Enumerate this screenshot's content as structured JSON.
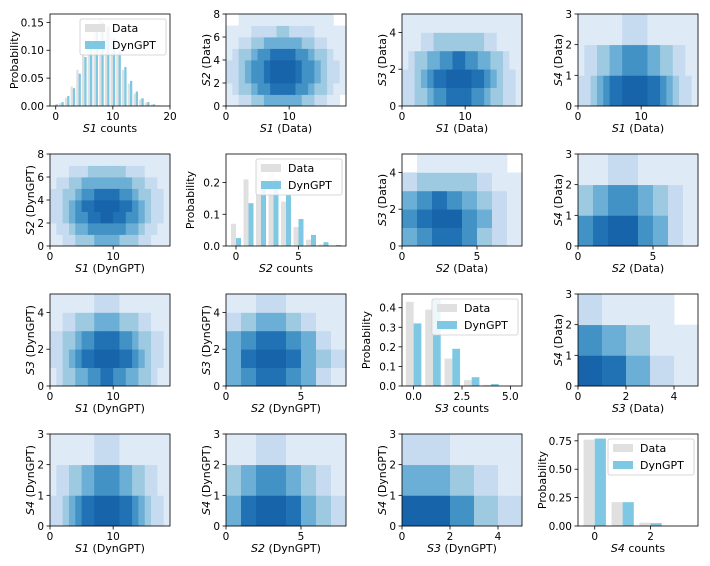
{
  "colors": {
    "data_bar": "#e0e0e0",
    "dyngpt_bar": "#7ec8e3",
    "heat_scale": [
      "#ffffff",
      "#deebf7",
      "#c6dbef",
      "#9ecae1",
      "#6baed6",
      "#4292c6",
      "#2171b5",
      "#1764ab"
    ]
  },
  "chart_data": [
    {
      "type": "bar",
      "row": 0,
      "col": 0,
      "xlabel": "S1 counts",
      "ylabel": "Probability",
      "xlim": [
        -1,
        20
      ],
      "ylim": [
        0,
        0.165
      ],
      "xticks": [
        0,
        10,
        20
      ],
      "yticks": [
        0.0,
        0.05,
        0.1,
        0.15
      ],
      "ytick_labels": [
        "0.00",
        "0.05",
        "0.10",
        "0.15"
      ],
      "legend": {
        "location": "upper right",
        "entries": [
          "Data",
          "DynGPT"
        ]
      },
      "categories": [
        0,
        1,
        2,
        3,
        4,
        5,
        6,
        7,
        8,
        9,
        10,
        11,
        12,
        13,
        14,
        15,
        16,
        17,
        18,
        19
      ],
      "series": [
        {
          "name": "Data",
          "values": [
            0.002,
            0.005,
            0.015,
            0.035,
            0.065,
            0.095,
            0.12,
            0.14,
            0.155,
            0.145,
            0.125,
            0.095,
            0.065,
            0.04,
            0.022,
            0.012,
            0.006,
            0.003,
            0.001,
            0.0
          ]
        },
        {
          "name": "DynGPT",
          "values": [
            0.003,
            0.007,
            0.018,
            0.032,
            0.058,
            0.088,
            0.113,
            0.135,
            0.15,
            0.142,
            0.122,
            0.098,
            0.07,
            0.045,
            0.026,
            0.014,
            0.007,
            0.003,
            0.001,
            0.0
          ]
        }
      ]
    },
    {
      "type": "heatmap",
      "row": 0,
      "col": 1,
      "xlabel": "S1 (Data)",
      "ylabel": "S2 (Data)",
      "xlim": [
        0,
        19
      ],
      "ylim": [
        0,
        8
      ],
      "xticks": [
        0,
        10
      ],
      "yticks": [
        0,
        2,
        4,
        6,
        8
      ],
      "grid": {
        "nx": 19,
        "ny": 8,
        "mu": [
          9,
          3
        ],
        "sigma": [
          4,
          1.9
        ],
        "empty_corners": [
          [
            0,
            7
          ],
          [
            1,
            7
          ],
          [
            17,
            7
          ],
          [
            18,
            7
          ],
          [
            18,
            0
          ]
        ]
      }
    },
    {
      "type": "heatmap",
      "row": 0,
      "col": 2,
      "xlabel": "S1 (Data)",
      "ylabel": "S3 (Data)",
      "xlim": [
        0,
        19
      ],
      "ylim": [
        0,
        5
      ],
      "xticks": [
        0,
        10
      ],
      "yticks": [
        0,
        2,
        4
      ],
      "grid": {
        "nx": 19,
        "ny": 5,
        "mu": [
          9,
          1.4
        ],
        "sigma": [
          4,
          1.3
        ]
      }
    },
    {
      "type": "heatmap",
      "row": 0,
      "col": 3,
      "xlabel": "S1 (Data)",
      "ylabel": "S4 (Data)",
      "xlim": [
        0,
        19
      ],
      "ylim": [
        0,
        3
      ],
      "xticks": [
        0,
        10
      ],
      "yticks": [
        0,
        1,
        2,
        3
      ],
      "grid": {
        "nx": 19,
        "ny": 3,
        "mu": [
          9,
          0.5
        ],
        "sigma": [
          4,
          0.9
        ]
      }
    },
    {
      "type": "heatmap",
      "row": 1,
      "col": 0,
      "xlabel": "S1 (DynGPT)",
      "ylabel": "S2 (DynGPT)",
      "xlim": [
        0,
        19
      ],
      "ylim": [
        0,
        8
      ],
      "xticks": [
        0,
        10
      ],
      "yticks": [
        0,
        2,
        4,
        6,
        8
      ],
      "grid": {
        "nx": 19,
        "ny": 8,
        "mu": [
          9,
          3.2
        ],
        "sigma": [
          4,
          1.9
        ]
      }
    },
    {
      "type": "bar",
      "row": 1,
      "col": 1,
      "xlabel": "S2 counts",
      "ylabel": "Probability",
      "xlim": [
        -0.8,
        8.8
      ],
      "ylim": [
        0,
        0.29
      ],
      "xticks": [
        0,
        5
      ],
      "yticks": [
        0.0,
        0.1,
        0.2
      ],
      "ytick_labels": [
        "0.0",
        "0.1",
        "0.2"
      ],
      "legend": {
        "location": "upper right",
        "entries": [
          "Data",
          "DynGPT"
        ]
      },
      "categories": [
        0,
        1,
        2,
        3,
        4,
        5,
        6,
        7,
        8
      ],
      "series": [
        {
          "name": "Data",
          "values": [
            0.07,
            0.21,
            0.27,
            0.23,
            0.14,
            0.06,
            0.02,
            0.005,
            0.001
          ]
        },
        {
          "name": "DynGPT",
          "values": [
            0.025,
            0.135,
            0.195,
            0.21,
            0.16,
            0.085,
            0.035,
            0.012,
            0.003
          ]
        }
      ]
    },
    {
      "type": "heatmap",
      "row": 1,
      "col": 2,
      "xlabel": "S2 (Data)",
      "ylabel": "S3 (Data)",
      "xlim": [
        0,
        8
      ],
      "ylim": [
        0,
        5
      ],
      "xticks": [
        0,
        5
      ],
      "yticks": [
        0,
        2,
        4
      ],
      "grid": {
        "nx": 8,
        "ny": 5,
        "mu": [
          2.7,
          1.4
        ],
        "sigma": [
          2.0,
          1.3
        ],
        "empty_corners": [
          [
            0,
            4
          ],
          [
            7,
            4
          ]
        ]
      }
    },
    {
      "type": "heatmap",
      "row": 1,
      "col": 3,
      "xlabel": "S2 (Data)",
      "ylabel": "S4 (Data)",
      "xlim": [
        0,
        8
      ],
      "ylim": [
        0,
        3
      ],
      "xticks": [
        0,
        5
      ],
      "yticks": [
        0,
        1,
        2,
        3
      ],
      "grid": {
        "nx": 8,
        "ny": 3,
        "mu": [
          2.7,
          0.5
        ],
        "sigma": [
          2.0,
          0.9
        ]
      }
    },
    {
      "type": "heatmap",
      "row": 2,
      "col": 0,
      "xlabel": "S1 (DynGPT)",
      "ylabel": "S3 (DynGPT)",
      "xlim": [
        0,
        19
      ],
      "ylim": [
        0,
        5
      ],
      "xticks": [
        0,
        10
      ],
      "yticks": [
        0,
        2,
        4
      ],
      "grid": {
        "nx": 19,
        "ny": 5,
        "mu": [
          9,
          1.6
        ],
        "sigma": [
          4,
          1.3
        ]
      }
    },
    {
      "type": "heatmap",
      "row": 2,
      "col": 1,
      "xlabel": "S2 (DynGPT)",
      "ylabel": "S3 (DynGPT)",
      "xlim": [
        0,
        8
      ],
      "ylim": [
        0,
        5
      ],
      "xticks": [
        0,
        5
      ],
      "yticks": [
        0,
        2,
        4
      ],
      "grid": {
        "nx": 8,
        "ny": 5,
        "mu": [
          3.0,
          1.6
        ],
        "sigma": [
          2.0,
          1.3
        ]
      }
    },
    {
      "type": "bar",
      "row": 2,
      "col": 2,
      "xlabel": "S3 counts",
      "ylabel": "Probability",
      "xlim": [
        -0.6,
        5.6
      ],
      "ylim": [
        0,
        0.47
      ],
      "xticks": [
        0,
        2.5,
        5
      ],
      "xtick_labels": [
        "0.0",
        "2.5",
        "5.0"
      ],
      "yticks": [
        0.0,
        0.1,
        0.2,
        0.3,
        0.4
      ],
      "ytick_labels": [
        "0.0",
        "0.1",
        "0.2",
        "0.3",
        "0.4"
      ],
      "legend": {
        "location": "upper right",
        "entries": [
          "Data",
          "DynGPT"
        ]
      },
      "categories": [
        0,
        1,
        2,
        3,
        4,
        5
      ],
      "series": [
        {
          "name": "Data",
          "values": [
            0.43,
            0.39,
            0.14,
            0.03,
            0.006,
            0.001
          ]
        },
        {
          "name": "DynGPT",
          "values": [
            0.32,
            0.44,
            0.19,
            0.045,
            0.01,
            0.002
          ]
        }
      ]
    },
    {
      "type": "heatmap",
      "row": 2,
      "col": 3,
      "xlabel": "S3 (Data)",
      "ylabel": "S4 (Data)",
      "xlim": [
        0,
        5
      ],
      "ylim": [
        0,
        3
      ],
      "xticks": [
        0,
        2,
        4
      ],
      "yticks": [
        0,
        1,
        2,
        3
      ],
      "grid": {
        "nx": 5,
        "ny": 3,
        "mu": [
          0.6,
          0.3
        ],
        "sigma": [
          1.5,
          1.0
        ],
        "empty_corners": [
          [
            4,
            2
          ]
        ]
      }
    },
    {
      "type": "heatmap",
      "row": 3,
      "col": 0,
      "xlabel": "S1 (DynGPT)",
      "ylabel": "S4 (DynGPT)",
      "xlim": [
        0,
        19
      ],
      "ylim": [
        0,
        3
      ],
      "xticks": [
        0,
        10
      ],
      "yticks": [
        0,
        1,
        2,
        3
      ],
      "grid": {
        "nx": 19,
        "ny": 3,
        "mu": [
          9,
          0.5
        ],
        "sigma": [
          4,
          0.9
        ]
      }
    },
    {
      "type": "heatmap",
      "row": 3,
      "col": 1,
      "xlabel": "S2 (DynGPT)",
      "ylabel": "S4 (DynGPT)",
      "xlim": [
        0,
        8
      ],
      "ylim": [
        0,
        3
      ],
      "xticks": [
        0,
        5
      ],
      "yticks": [
        0,
        1,
        2,
        3
      ],
      "grid": {
        "nx": 8,
        "ny": 3,
        "mu": [
          3.0,
          0.5
        ],
        "sigma": [
          2.0,
          0.9
        ]
      }
    },
    {
      "type": "heatmap",
      "row": 3,
      "col": 2,
      "xlabel": "S3 (DynGPT)",
      "ylabel": "S4 (DynGPT)",
      "xlim": [
        0,
        5
      ],
      "ylim": [
        0,
        3
      ],
      "xticks": [
        0,
        2,
        4
      ],
      "yticks": [
        0,
        1,
        2,
        3
      ],
      "grid": {
        "nx": 5,
        "ny": 3,
        "mu": [
          1.0,
          0.3
        ],
        "sigma": [
          1.6,
          1.0
        ]
      }
    },
    {
      "type": "bar",
      "row": 3,
      "col": 3,
      "xlabel": "S4 counts",
      "ylabel": "Probability",
      "xlim": [
        -0.6,
        3.7
      ],
      "ylim": [
        0,
        0.81
      ],
      "xticks": [
        0,
        2
      ],
      "yticks": [
        0.0,
        0.25,
        0.5,
        0.75
      ],
      "ytick_labels": [
        "0.00",
        "0.25",
        "0.50",
        "0.75"
      ],
      "legend": {
        "location": "upper right",
        "entries": [
          "Data",
          "DynGPT"
        ]
      },
      "categories": [
        0,
        1,
        2,
        3
      ],
      "series": [
        {
          "name": "Data",
          "values": [
            0.76,
            0.21,
            0.03,
            0.002
          ]
        },
        {
          "name": "DynGPT",
          "values": [
            0.77,
            0.21,
            0.025,
            0.002
          ]
        }
      ]
    }
  ]
}
